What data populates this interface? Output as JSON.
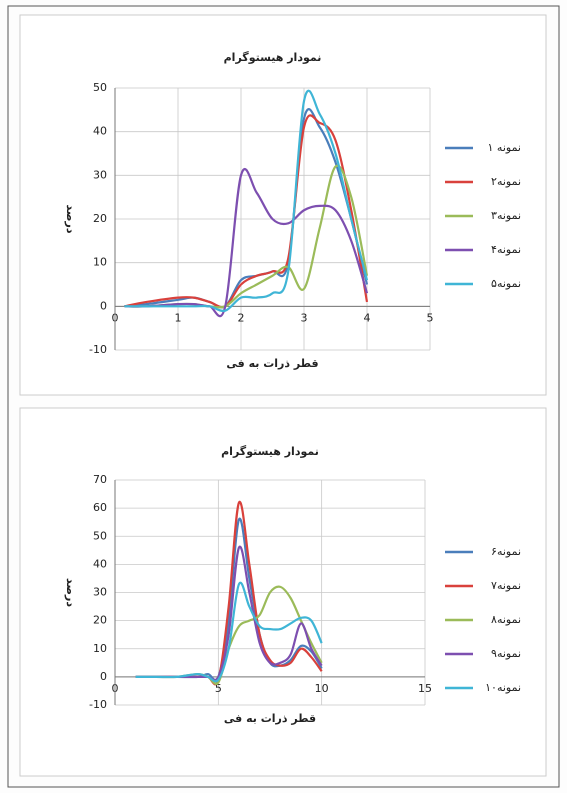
{
  "chart_data": [
    {
      "type": "line",
      "title": "نمودار هیستوگرام",
      "y_label": "درصد",
      "x_label": "قطر ذرات به فی",
      "x": [
        0.15,
        0.5,
        1,
        1.25,
        1.5,
        1.75,
        2,
        2.25,
        2.5,
        2.75,
        3,
        3.25,
        3.5,
        3.75,
        4
      ],
      "series": [
        {
          "name": "نمونه ۱",
          "color": "#4a7ebb",
          "values": [
            0,
            0.5,
            1.5,
            2,
            1,
            0,
            6,
            7,
            8,
            10,
            43,
            41,
            33,
            20,
            5
          ]
        },
        {
          "name": "نمونه۲",
          "color": "#d9413c",
          "values": [
            0,
            1,
            2,
            2,
            1,
            0,
            5,
            7,
            8,
            11,
            41,
            42,
            38,
            22,
            1
          ]
        },
        {
          "name": "نمونه۳",
          "color": "#9bbb59",
          "values": [
            0,
            0,
            0.5,
            0.5,
            0,
            0,
            3,
            5,
            7,
            9,
            4,
            18,
            32,
            25,
            7
          ]
        },
        {
          "name": "نمونه۴",
          "color": "#7d4fb0",
          "values": [
            0,
            0,
            0.5,
            0.5,
            0,
            0,
            30,
            26,
            20,
            19,
            22,
            23,
            22,
            15,
            3
          ]
        },
        {
          "name": "نمونه۵",
          "color": "#3fb5d6",
          "values": [
            0,
            0,
            0,
            0,
            0,
            -1,
            2,
            2,
            3,
            8,
            47,
            44,
            35,
            20,
            6
          ]
        }
      ],
      "xlim": [
        0,
        5
      ],
      "xticks": [
        0,
        1,
        2,
        3,
        4,
        5
      ],
      "ylim": [
        -10,
        50
      ],
      "yticks": [
        -10,
        0,
        10,
        20,
        30,
        40,
        50
      ],
      "grid": true,
      "legend": "right"
    },
    {
      "type": "line",
      "title": "نمودار هیستوگرام",
      "y_label": "درصد",
      "x_label": "قطر ذرات به فی",
      "x": [
        1,
        2,
        3,
        4,
        4.5,
        5,
        5.5,
        6,
        6.5,
        7,
        7.5,
        8,
        8.5,
        9,
        9.5,
        10
      ],
      "series": [
        {
          "name": "نمونه۶",
          "color": "#4a7ebb",
          "values": [
            0,
            0,
            0,
            0,
            1,
            0,
            20,
            56,
            35,
            15,
            5,
            4,
            6,
            11,
            9,
            3
          ]
        },
        {
          "name": "نمونه۷",
          "color": "#d9413c",
          "values": [
            0,
            0,
            0,
            0,
            0,
            -1,
            25,
            62,
            40,
            15,
            6,
            4,
            5,
            10,
            7,
            2
          ]
        },
        {
          "name": "نمونه۸",
          "color": "#9bbb59",
          "values": [
            0,
            0,
            0,
            1,
            0,
            -2,
            10,
            18,
            20,
            22,
            30,
            32,
            28,
            20,
            12,
            5
          ]
        },
        {
          "name": "نمونه۹",
          "color": "#7d4fb0",
          "values": [
            0,
            0,
            0,
            0,
            0,
            0,
            15,
            46,
            30,
            12,
            5,
            5,
            8,
            19,
            10,
            4
          ]
        },
        {
          "name": "نمونه۱۰",
          "color": "#3fb5d6",
          "values": [
            0,
            0,
            0,
            1,
            0,
            -1,
            10,
            33,
            25,
            18,
            17,
            17,
            19,
            21,
            20,
            12
          ]
        }
      ],
      "xlim": [
        0,
        15
      ],
      "xticks": [
        0,
        5,
        10,
        15
      ],
      "ylim": [
        -10,
        70
      ],
      "yticks": [
        -10,
        0,
        10,
        20,
        30,
        40,
        50,
        60,
        70
      ],
      "grid": true,
      "legend": "right"
    }
  ]
}
